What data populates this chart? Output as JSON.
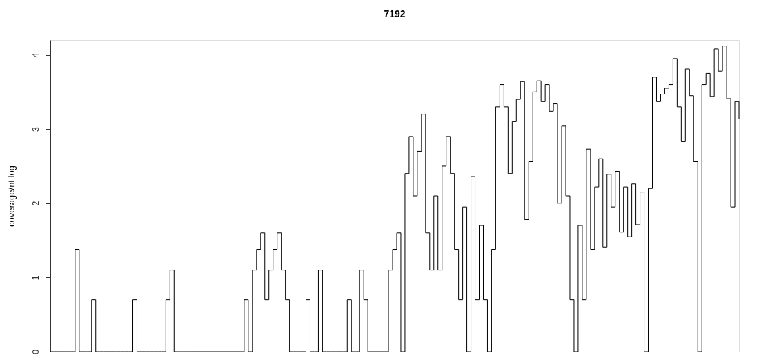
{
  "chart_data": {
    "type": "step",
    "title": "7192",
    "ylabel": "coverage/nt log",
    "categories": [
      null,
      null,
      null,
      null,
      null,
      null,
      null,
      null,
      null,
      null,
      null,
      null,
      null,
      null,
      null,
      null,
      null,
      null,
      null,
      null,
      null,
      null,
      null,
      null,
      null,
      null,
      null,
      null,
      null,
      null,
      null,
      null,
      null,
      null,
      null,
      null,
      null,
      null,
      null,
      null,
      null,
      null,
      null,
      null,
      null,
      null,
      null,
      null,
      null,
      null,
      null,
      null,
      null,
      null,
      null,
      null,
      null,
      null,
      null,
      null,
      null,
      null,
      null,
      null,
      null,
      null,
      null,
      null,
      null,
      null,
      null,
      null,
      null,
      null,
      null,
      null,
      null,
      null,
      null,
      null,
      null,
      null,
      null,
      null,
      null,
      null,
      null,
      null,
      null,
      null,
      null,
      null,
      null,
      null,
      null,
      null,
      null,
      null,
      null,
      null,
      null,
      null,
      null,
      null,
      null,
      null,
      null,
      null,
      null,
      null,
      null,
      null,
      null,
      null,
      null,
      null,
      null,
      null,
      null,
      null,
      null,
      null,
      null,
      null,
      null,
      null,
      null,
      null,
      null,
      null,
      null,
      null,
      null,
      null,
      null,
      null,
      null,
      null,
      null,
      null,
      null,
      null,
      null,
      null,
      null,
      null,
      null,
      null,
      null,
      null,
      null,
      null,
      null,
      null,
      null,
      null,
      null,
      null,
      null,
      null,
      null,
      null,
      null,
      null,
      null,
      null,
      null,
      null
    ],
    "values": [
      0,
      0,
      0,
      0,
      0,
      0,
      1.38,
      0,
      0,
      0,
      0.7,
      0,
      0,
      0,
      0,
      0,
      0,
      0,
      0,
      0,
      0.7,
      0,
      0,
      0,
      0,
      0,
      0,
      0,
      0.7,
      1.1,
      0,
      0,
      0,
      0,
      0,
      0,
      0,
      0,
      0,
      0,
      0,
      0,
      0,
      0,
      0,
      0,
      0,
      0.7,
      0,
      1.1,
      1.38,
      1.6,
      0.7,
      1.1,
      1.38,
      1.6,
      1.1,
      0.7,
      0,
      0,
      0,
      0,
      0.7,
      0,
      0,
      1.1,
      0,
      0,
      0,
      0,
      0,
      0,
      0.7,
      0,
      0,
      1.1,
      0.7,
      0,
      0,
      0,
      0,
      0,
      1.1,
      1.38,
      1.6,
      0,
      2.4,
      2.9,
      2.1,
      2.7,
      3.2,
      1.6,
      1.1,
      2.1,
      1.1,
      2.5,
      2.9,
      2.4,
      1.38,
      0.7,
      1.95,
      0,
      2.36,
      0.7,
      1.7,
      0.7,
      0,
      1.38,
      3.3,
      3.6,
      3.3,
      2.4,
      3.1,
      3.4,
      3.64,
      1.78,
      2.56,
      3.5,
      3.65,
      3.37,
      3.6,
      3.24,
      3.34,
      2.0,
      3.04,
      2.1,
      0.7,
      0,
      1.7,
      0.7,
      2.73,
      1.38,
      2.22,
      2.6,
      1.41,
      2.39,
      1.95,
      2.43,
      1.61,
      2.22,
      1.55,
      2.26,
      1.71,
      2.15,
      0,
      2.2,
      3.7,
      3.37,
      3.47,
      3.55,
      3.6,
      3.95,
      3.3,
      2.83,
      3.81,
      3.45,
      2.56,
      0,
      3.6,
      3.75,
      3.44,
      4.08,
      3.78,
      4.12,
      3.41,
      1.95,
      3.37,
      3.14
    ],
    "color": "#000000",
    "ylim": [
      0,
      4.2
    ],
    "yticks": [
      0,
      1,
      2,
      3,
      4
    ],
    "tick_labels": "y",
    "grid": false
  }
}
